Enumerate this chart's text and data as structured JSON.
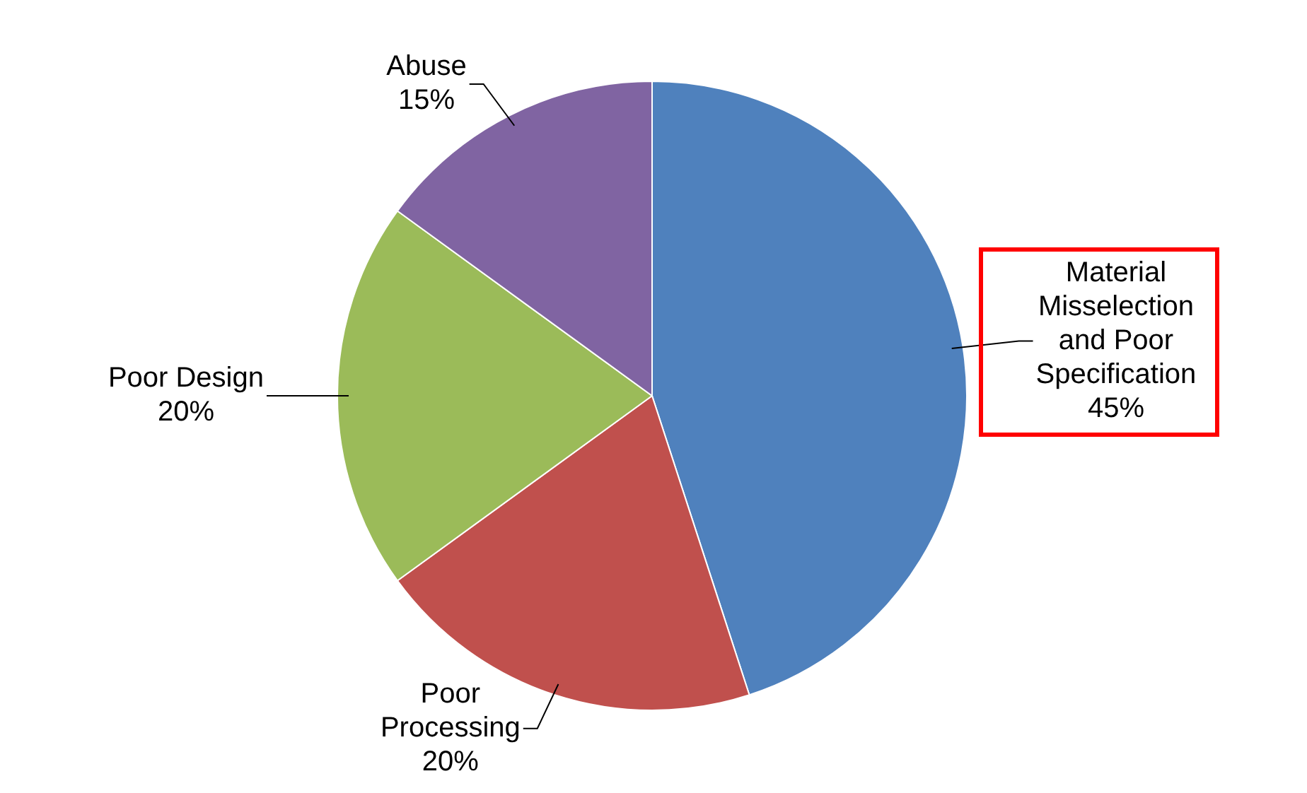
{
  "chart_data": {
    "type": "pie",
    "categories": [
      "Material Misselection and Poor Specification",
      "Poor Processing",
      "Poor Design",
      "Abuse"
    ],
    "values": [
      45,
      20,
      20,
      15
    ],
    "colors": [
      "#4f81bd",
      "#c0504d",
      "#9bbb59",
      "#8064a2"
    ],
    "value_labels": [
      "45%",
      "20%",
      "20%",
      "15%"
    ],
    "legend": false
  }
}
